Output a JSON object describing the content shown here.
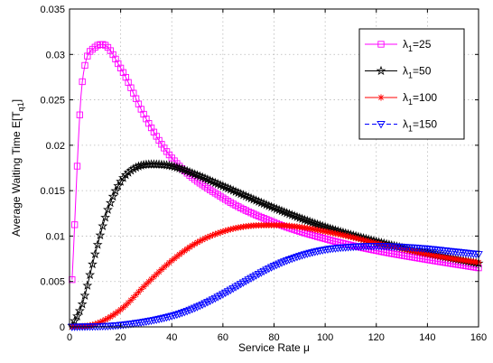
{
  "chart_data": {
    "type": "line",
    "xlabel": "Service Rate μ",
    "ylabel": "Average Waiting Time E[T",
    "ylabel_sub": "q1",
    "ylabel_end": "]",
    "xlim": [
      0,
      160
    ],
    "ylim": [
      0,
      0.035
    ],
    "xticks": [
      "0",
      "20",
      "40",
      "60",
      "80",
      "100",
      "120",
      "140",
      "160"
    ],
    "yticks": [
      "0",
      "0.005",
      "0.01",
      "0.015",
      "0.02",
      "0.025",
      "0.03",
      "0.035"
    ],
    "grid": true,
    "legend_position": "top-right",
    "series": [
      {
        "name_main": "λ",
        "name_sub": "1",
        "name_rest": "=25",
        "color": "#ff00ff",
        "marker": "square",
        "line_style": "solid",
        "x": [
          1,
          5,
          10,
          13,
          20,
          30,
          40,
          60,
          80,
          100,
          120,
          140,
          160
        ],
        "values": [
          0.0052,
          0.027,
          0.0308,
          0.0311,
          0.0285,
          0.0229,
          0.0186,
          0.0142,
          0.0115,
          0.0097,
          0.0084,
          0.0074,
          0.0065
        ]
      },
      {
        "name_main": "λ",
        "name_sub": "1",
        "name_rest": "=50",
        "color": "#000000",
        "marker": "star",
        "line_style": "solid",
        "x": [
          1,
          5,
          10,
          15,
          20,
          25,
          32,
          40,
          50,
          60,
          80,
          100,
          120,
          140,
          160
        ],
        "values": [
          0.0001,
          0.0025,
          0.008,
          0.0129,
          0.016,
          0.0174,
          0.0179,
          0.0177,
          0.0167,
          0.0155,
          0.0131,
          0.011,
          0.0094,
          0.0081,
          0.007
        ]
      },
      {
        "name_main": "λ",
        "name_sub": "1",
        "name_rest": "=100",
        "color": "#ff0000",
        "marker": "asterisk",
        "line_style": "solid",
        "x": [
          1,
          10,
          20,
          30,
          40,
          50,
          60,
          70,
          80,
          90,
          100,
          110,
          120,
          130,
          140,
          150,
          160
        ],
        "values": [
          0.0,
          0.0003,
          0.0019,
          0.0047,
          0.0073,
          0.0093,
          0.0105,
          0.0111,
          0.0112,
          0.011,
          0.0105,
          0.0099,
          0.0092,
          0.0086,
          0.008,
          0.0075,
          0.0071
        ]
      },
      {
        "name_main": "λ",
        "name_sub": "1",
        "name_rest": "=150",
        "color": "#0000ff",
        "marker": "triangle-down",
        "line_style": "dashed",
        "x": [
          1,
          20,
          40,
          50,
          60,
          70,
          80,
          90,
          100,
          110,
          120,
          130,
          140,
          150,
          160
        ],
        "values": [
          0.0,
          0.0002,
          0.0012,
          0.0022,
          0.0036,
          0.0052,
          0.0067,
          0.0078,
          0.0085,
          0.0088,
          0.0089,
          0.0088,
          0.0086,
          0.0083,
          0.008
        ]
      }
    ]
  }
}
